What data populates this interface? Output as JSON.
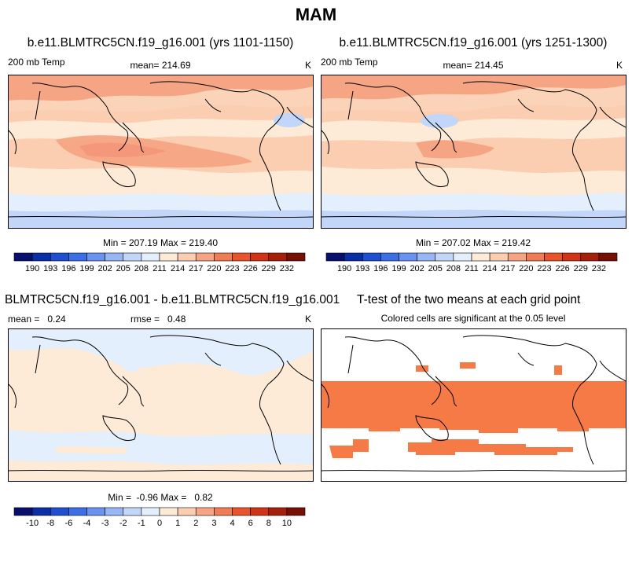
{
  "suptitle": "MAM",
  "panels": [
    {
      "title": "b.e11.BLMTRC5CN.f19_g16.001 (yrs 1101-1150)",
      "left_label": "200 mb Temp",
      "center_label": "mean= 214.69",
      "right_label": "K",
      "minmax": "Min = 207.19 Max = 219.40"
    },
    {
      "title": "b.e11.BLMTRC5CN.f19_g16.001 (yrs 1251-1300)",
      "left_label": "200 mb Temp",
      "center_label": "mean= 214.45",
      "right_label": "K",
      "minmax": "Min = 207.02 Max = 219.42"
    },
    {
      "title": "BLMTRC5CN.f19_g16.001 - b.e11.BLMTRC5CN.f19_g16.001",
      "left_label": "mean =   0.24",
      "center_label": "rmse =   0.48",
      "right_label": "K",
      "minmax": "Min =  -0.96 Max =   0.82"
    },
    {
      "title": "T-test of the two means at each grid point",
      "subtitle": "Colored cells are significant at the 0.05 level"
    }
  ],
  "colorbars": {
    "colors": [
      "#08106e",
      "#0a2ea6",
      "#1f4fd0",
      "#3c6ee6",
      "#6a93ef",
      "#98b6f4",
      "#c2d6f9",
      "#e4effd",
      "#fdebd8",
      "#fbcdb1",
      "#f6a584",
      "#f07c56",
      "#e7542e",
      "#cf3318",
      "#a5200b",
      "#760f05"
    ],
    "abs_ticks": [
      "190",
      "193",
      "196",
      "199",
      "202",
      "205",
      "208",
      "211",
      "214",
      "217",
      "220",
      "223",
      "226",
      "229",
      "232"
    ],
    "diff_ticks": [
      "-10",
      "-8",
      "-6",
      "-4",
      "-3",
      "-2",
      "-1",
      "0",
      "1",
      "2",
      "3",
      "4",
      "6",
      "8",
      "10"
    ]
  },
  "chart_data": [
    {
      "type": "heatmap",
      "title": "b.e11.BLMTRC5CN.f19_g16.001 (yrs 1101-1150)",
      "variable": "200 mb Temp",
      "units": "K",
      "mean": 214.69,
      "min": 207.19,
      "max": 219.4,
      "contour_levels": [
        190,
        193,
        196,
        199,
        202,
        205,
        208,
        211,
        214,
        217,
        220,
        223,
        226,
        229,
        232
      ],
      "projection": "cylindrical equidistant, centered 180"
    },
    {
      "type": "heatmap",
      "title": "b.e11.BLMTRC5CN.f19_g16.001 (yrs 1251-1300)",
      "variable": "200 mb Temp",
      "units": "K",
      "mean": 214.45,
      "min": 207.02,
      "max": 219.42,
      "contour_levels": [
        190,
        193,
        196,
        199,
        202,
        205,
        208,
        211,
        214,
        217,
        220,
        223,
        226,
        229,
        232
      ]
    },
    {
      "type": "heatmap",
      "title": "BLMTRC5CN.f19_g16.001 - b.e11.BLMTRC5CN.f19_g16.001",
      "units": "K",
      "mean": 0.24,
      "rmse": 0.48,
      "min": -0.96,
      "max": 0.82,
      "contour_levels": [
        -10,
        -8,
        -6,
        -4,
        -3,
        -2,
        -1,
        0,
        1,
        2,
        3,
        4,
        6,
        8,
        10
      ]
    },
    {
      "type": "heatmap",
      "title": "T-test of the two means at each grid point",
      "note": "Colored cells are significant at the 0.05 level",
      "significance_level": 0.05,
      "significant_color": "#f57a45"
    }
  ]
}
